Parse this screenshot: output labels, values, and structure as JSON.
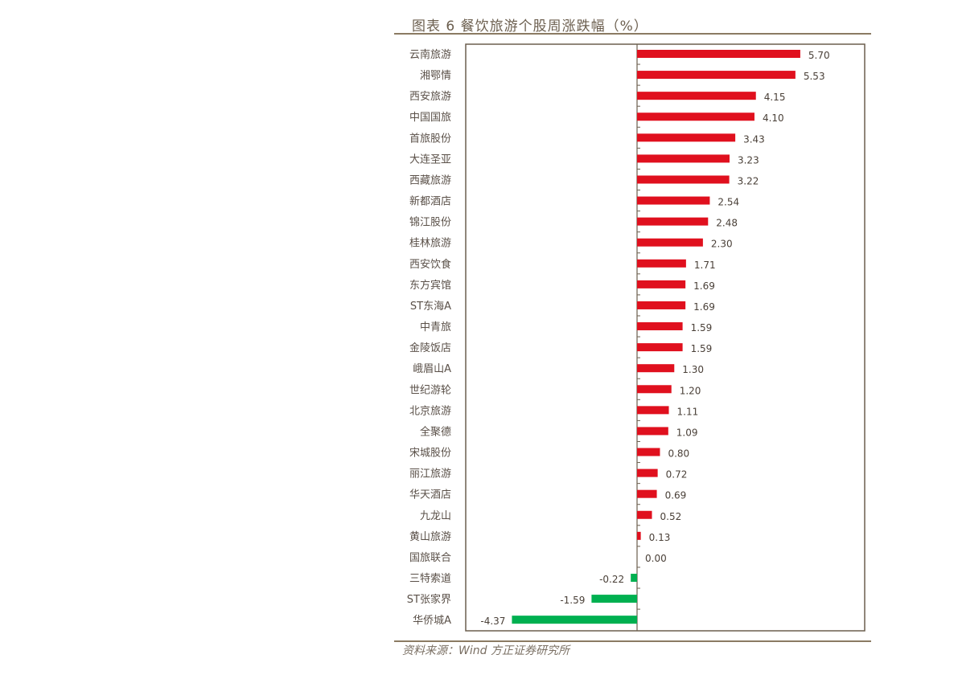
{
  "chart_data": {
    "type": "bar",
    "orientation": "horizontal",
    "title": "图表 6 餐饮旅游个股周涨跌幅（%）",
    "source": "资料来源：Wind  方正证券研究所",
    "categories": [
      "云南旅游",
      "湘鄂情",
      "西安旅游",
      "中国国旅",
      "首旅股份",
      "大连圣亚",
      "西藏旅游",
      "新都酒店",
      "锦江股份",
      "桂林旅游",
      "西安饮食",
      "东方宾馆",
      "ST东海A",
      "中青旅",
      "金陵饭店",
      "峨眉山A",
      "世纪游轮",
      "北京旅游",
      "全聚德",
      "宋城股份",
      "丽江旅游",
      "华天酒店",
      "九龙山",
      "黄山旅游",
      "国旅联合",
      "三特索道",
      "ST张家界",
      "华侨城A"
    ],
    "values": [
      5.7,
      5.53,
      4.15,
      4.1,
      3.43,
      3.23,
      3.22,
      2.54,
      2.48,
      2.3,
      1.71,
      1.69,
      1.69,
      1.59,
      1.59,
      1.3,
      1.2,
      1.11,
      1.09,
      0.8,
      0.72,
      0.69,
      0.52,
      0.13,
      0.0,
      -0.22,
      -1.59,
      -4.37
    ],
    "labels": [
      "5.70",
      "5.53",
      "4.15",
      "4.10",
      "3.43",
      "3.23",
      "3.22",
      "2.54",
      "2.48",
      "2.30",
      "1.71",
      "1.69",
      "1.69",
      "1.59",
      "1.59",
      "1.30",
      "1.20",
      "1.11",
      "1.09",
      "0.80",
      "0.72",
      "0.69",
      "0.52",
      "0.13",
      "0.00",
      "-0.22",
      "-1.59",
      "-4.37"
    ],
    "xlim": [
      -6,
      8
    ],
    "colors": {
      "positive": "#e0101e",
      "negative": "#00b050",
      "axis": "#6b5e4e"
    },
    "grid": false,
    "legend": "none"
  }
}
